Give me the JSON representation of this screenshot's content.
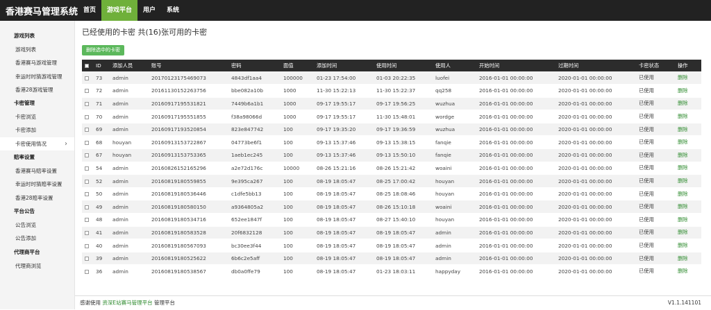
{
  "header": {
    "logo": "香港赛马管理系统",
    "nav": [
      "首页",
      "游戏平台",
      "用户",
      "系统"
    ]
  },
  "sidebar": [
    {
      "title": "游戏列表",
      "items": [
        "游戏列表",
        "香港赛马游戏管理",
        "幸运时时猜游戏管理",
        "香港28游戏管理"
      ]
    },
    {
      "title": "卡密管理",
      "items": [
        "卡密浏览",
        "卡密添加",
        "卡密使用情况"
      ]
    },
    {
      "title": "赔率设置",
      "items": [
        "香港赛马赔率设置",
        "幸运时时猜赔率设置",
        "香港28赔率设置"
      ]
    },
    {
      "title": "平台公告",
      "items": [
        "公告浏览",
        "公告添加"
      ]
    },
    {
      "title": "代理商平台",
      "items": [
        "代理商浏览"
      ]
    }
  ],
  "main": {
    "title": "已经使用的卡密 共(16)张可用的卡密",
    "button": "删除选中的卡密"
  },
  "table": {
    "headers": [
      "ID",
      "添加人员",
      "账号",
      "密码",
      "面值",
      "添加时间",
      "使用时间",
      "使用人",
      "开始时间",
      "过期时间",
      "卡密状态",
      "操作"
    ],
    "rows": [
      [
        "73",
        "admin",
        "20170123175469073",
        "4843df1aa4",
        "100000",
        "01-23 17:54:00",
        "01-03 20:22:35",
        "luofei",
        "2016-01-01 00:00:00",
        "2020-01-01 00:00:00",
        "已使用",
        "删除"
      ],
      [
        "72",
        "admin",
        "20161130152263756",
        "bbe082a10b",
        "1000",
        "11-30 15:22:13",
        "11-30 15:22:37",
        "qq258",
        "2016-01-01 00:00:00",
        "2020-01-01 00:00:00",
        "已使用",
        "删除"
      ],
      [
        "71",
        "admin",
        "20160917195531821",
        "7449b6a1b1",
        "1000",
        "09-17 19:55:17",
        "09-17 19:56:25",
        "wuzhua",
        "2016-01-01 00:00:00",
        "2020-01-01 00:00:00",
        "已使用",
        "删除"
      ],
      [
        "70",
        "admin",
        "20160917195551855",
        "f38a98066d",
        "1000",
        "09-17 19:55:17",
        "11-30 15:48:01",
        "wordge",
        "2016-01-01 00:00:00",
        "2020-01-01 00:00:00",
        "已使用",
        "删除"
      ],
      [
        "69",
        "admin",
        "20160917193520854",
        "823e847742",
        "100",
        "09-17 19:35:20",
        "09-17 19:36:59",
        "wuzhua",
        "2016-01-01 00:00:00",
        "2020-01-01 00:00:00",
        "已使用",
        "删除"
      ],
      [
        "68",
        "houyan",
        "20160913153722867",
        "04773be6f1",
        "100",
        "09-13 15:37:46",
        "09-13 15:38:15",
        "fanqie",
        "2016-01-01 00:00:00",
        "2020-01-01 00:00:00",
        "已使用",
        "删除"
      ],
      [
        "67",
        "houyan",
        "20160913153753365",
        "1aeb1ec245",
        "100",
        "09-13 15:37:46",
        "09-13 15:50:10",
        "fanqie",
        "2016-01-01 00:00:00",
        "2020-01-01 00:00:00",
        "已使用",
        "删除"
      ],
      [
        "54",
        "admin",
        "20160826152165296",
        "a2e72d176c",
        "10000",
        "08-26 15:21:16",
        "08-26 15:21:42",
        "woaini",
        "2016-01-01 00:00:00",
        "2020-01-01 00:00:00",
        "已使用",
        "删除"
      ],
      [
        "52",
        "admin",
        "20160819180559855",
        "9e395ca267",
        "100",
        "08-19 18:05:47",
        "08-25 17:00:42",
        "houyan",
        "2016-01-01 00:00:00",
        "2020-01-01 00:00:00",
        "已使用",
        "删除"
      ],
      [
        "50",
        "admin",
        "20160819180536446",
        "c1dfe5bb13",
        "100",
        "08-19 18:05:47",
        "08-25 18:08:46",
        "houyan",
        "2016-01-01 00:00:00",
        "2020-01-01 00:00:00",
        "已使用",
        "删除"
      ],
      [
        "49",
        "admin",
        "20160819180580150",
        "a9364805a2",
        "100",
        "08-19 18:05:47",
        "08-26 15:10:18",
        "woaini",
        "2016-01-01 00:00:00",
        "2020-01-01 00:00:00",
        "已使用",
        "删除"
      ],
      [
        "48",
        "admin",
        "20160819180534716",
        "652ee1847f",
        "100",
        "08-19 18:05:47",
        "08-27 15:40:10",
        "houyan",
        "2016-01-01 00:00:00",
        "2020-01-01 00:00:00",
        "已使用",
        "删除"
      ],
      [
        "41",
        "admin",
        "20160819180583528",
        "20f6832128",
        "100",
        "08-19 18:05:47",
        "08-19 18:05:47",
        "admin",
        "2016-01-01 00:00:00",
        "2020-01-01 00:00:00",
        "已使用",
        "删除"
      ],
      [
        "40",
        "admin",
        "20160819180567093",
        "bc30ee3f44",
        "100",
        "08-19 18:05:47",
        "08-19 18:05:47",
        "admin",
        "2016-01-01 00:00:00",
        "2020-01-01 00:00:00",
        "已使用",
        "删除"
      ],
      [
        "39",
        "admin",
        "20160819180525622",
        "6b6c2e5aff",
        "100",
        "08-19 18:05:47",
        "08-19 18:05:47",
        "admin",
        "2016-01-01 00:00:00",
        "2020-01-01 00:00:00",
        "已使用",
        "删除"
      ],
      [
        "36",
        "admin",
        "20160819180538567",
        "db0a0ffe79",
        "100",
        "08-19 18:05:47",
        "01-23 18:03:11",
        "happyday",
        "2016-01-01 00:00:00",
        "2020-01-01 00:00:00",
        "已使用",
        "删除"
      ]
    ]
  },
  "footer": {
    "prefix": "感谢使用",
    "link": "资深E站赛马管理平台",
    "suffix": "管理平台",
    "version": "V1.1.141101"
  }
}
